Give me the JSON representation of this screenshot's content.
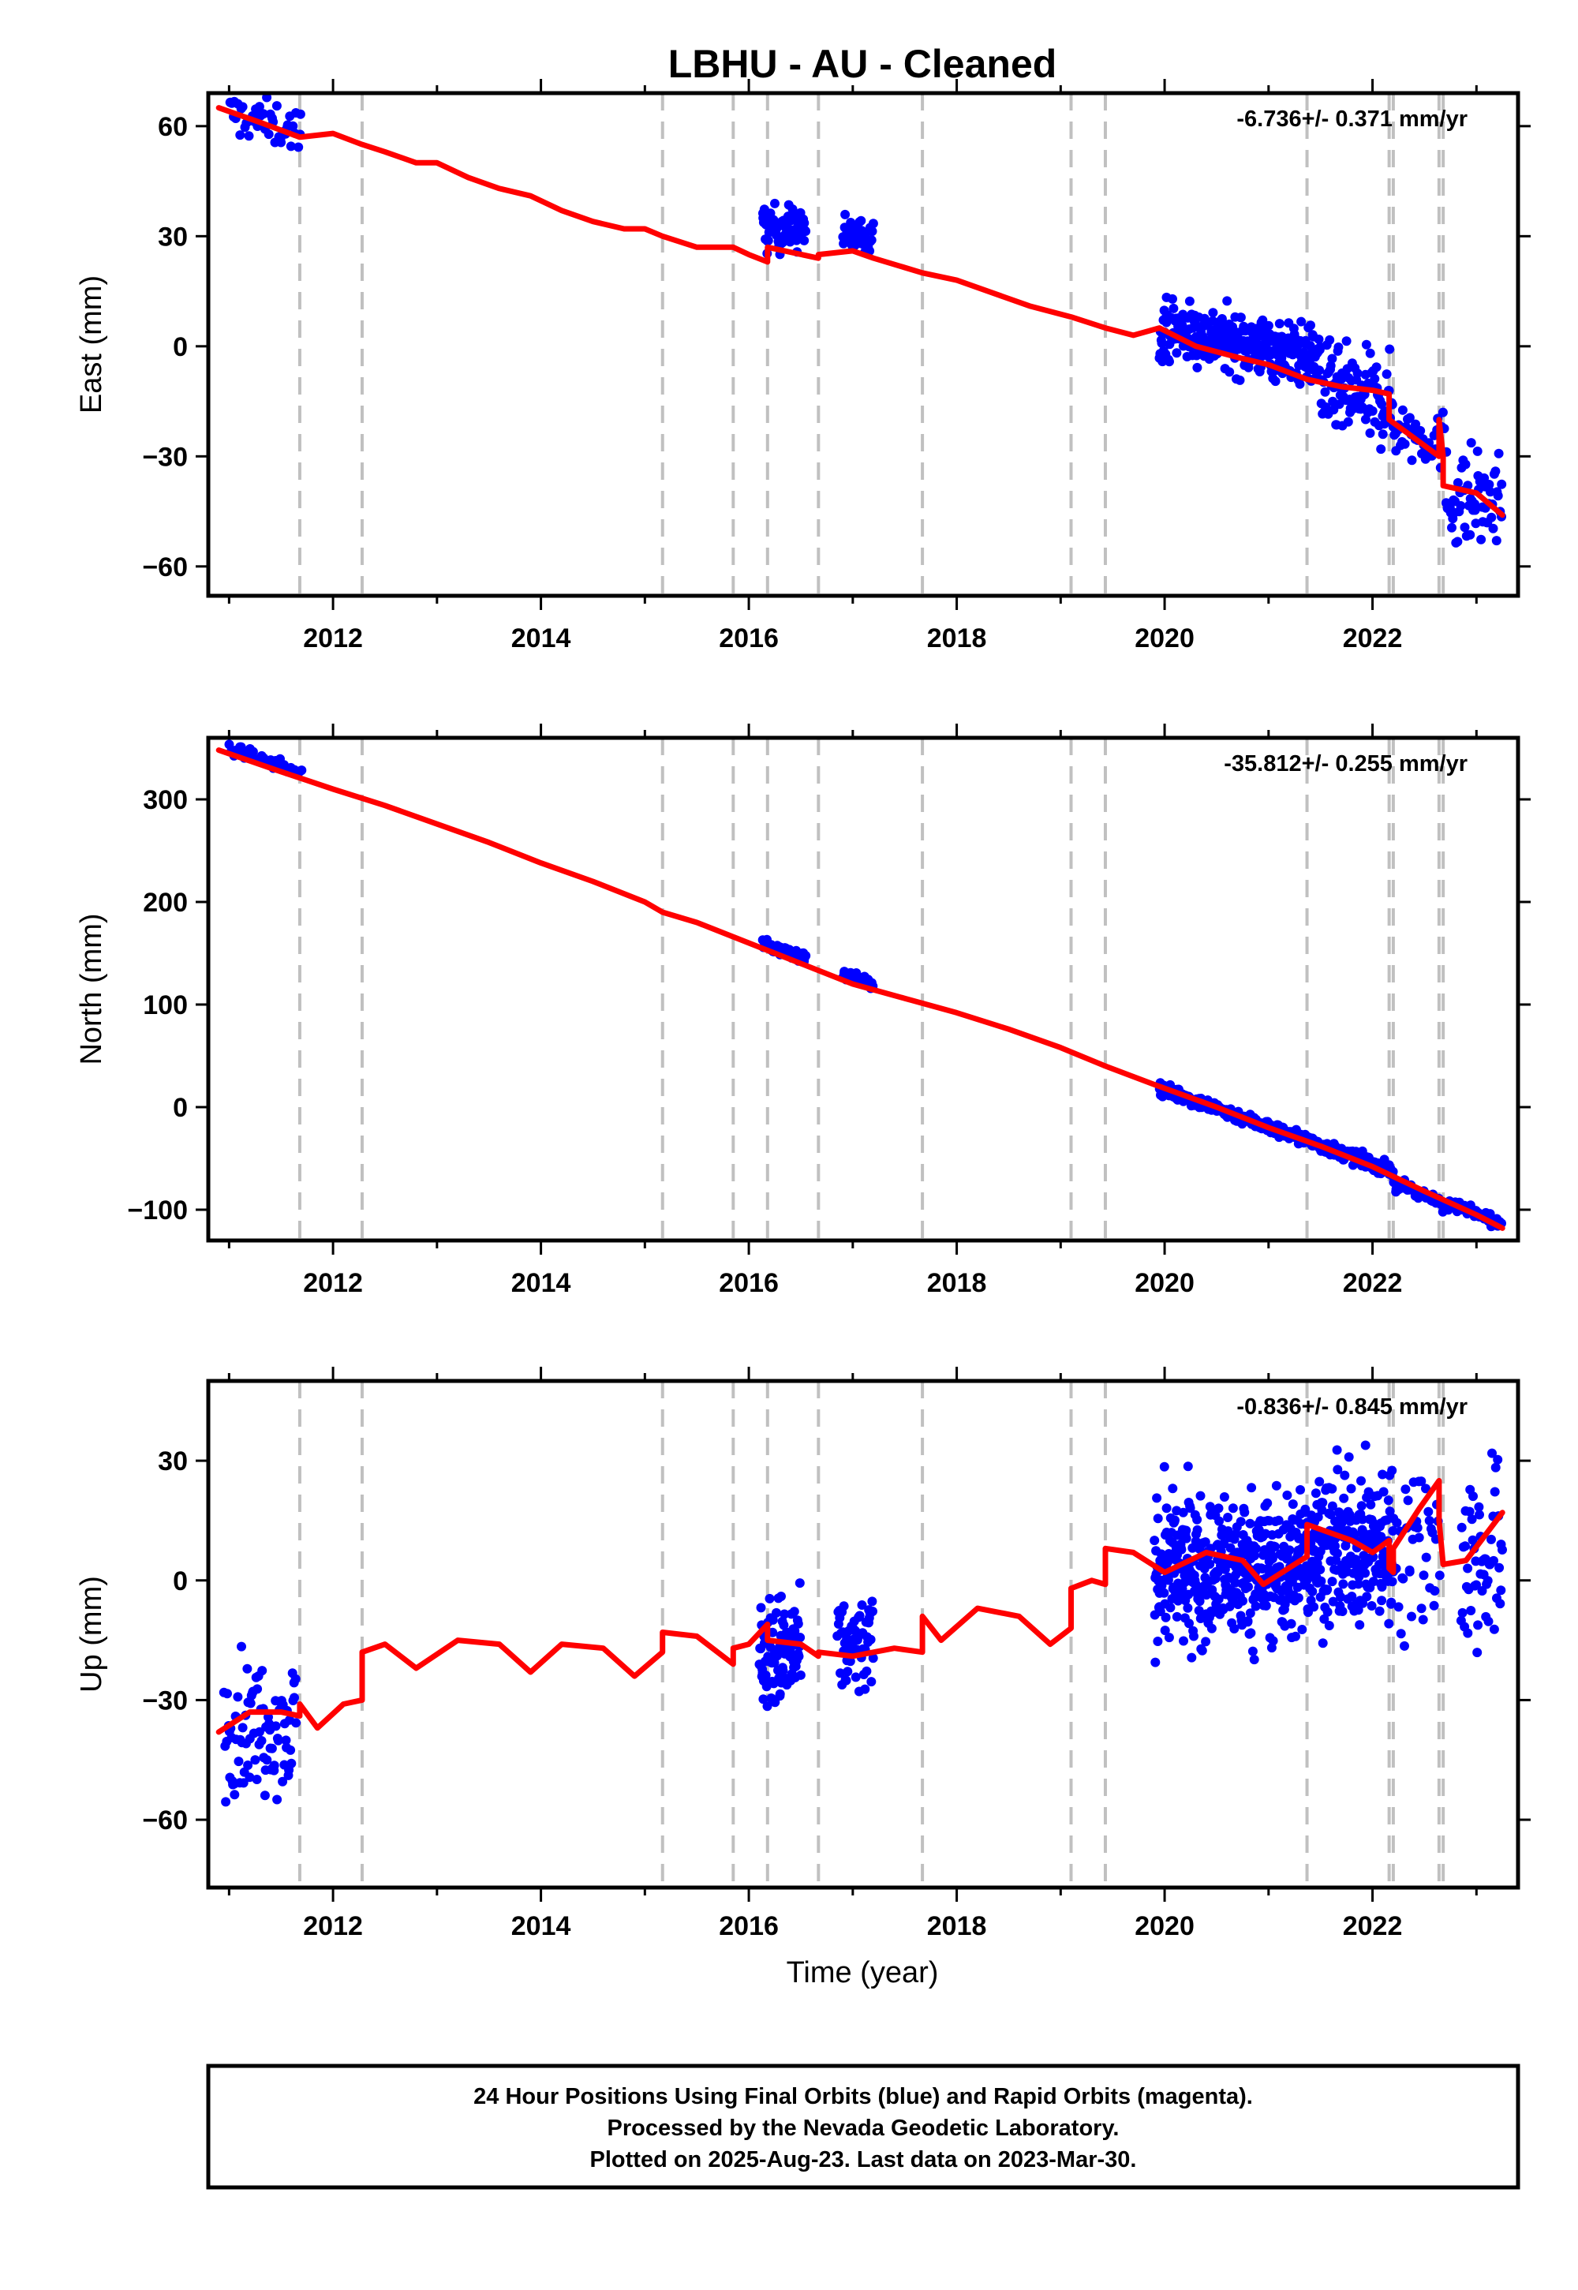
{
  "title": "LBHU  - AU - Cleaned",
  "xlabel": "Time (year)",
  "x_ticks": [
    "2012",
    "2014",
    "2016",
    "2018",
    "2020",
    "2022"
  ],
  "footer": {
    "line1": "24 Hour Positions Using Final Orbits (blue) and Rapid Orbits (magenta).",
    "line2": "Processed by the Nevada Geodetic Laboratory.",
    "line3": "Plotted on 2025-Aug-23. Last data on 2023-Mar-30."
  },
  "colors": {
    "data": "#0000ff",
    "model": "#ff0000",
    "event_lines": "#c0c0c0",
    "frame": "#000000"
  },
  "chart_data": [
    {
      "type": "scatter",
      "panel": "east",
      "ylabel": "East (mm)",
      "rate_text": "-6.736+/- 0.371 mm/yr",
      "xlim": [
        2010.8,
        2023.4
      ],
      "ylim": [
        -68,
        69
      ],
      "y_ticks": [
        -60,
        -30,
        0,
        30,
        60
      ],
      "y_tick_labels": [
        "−60",
        "−30",
        "0",
        "30",
        "60"
      ],
      "event_lines": [
        2011.68,
        2012.28,
        2015.17,
        2015.85,
        2016.18,
        2016.67,
        2017.67,
        2019.1,
        2019.43,
        2021.37,
        2022.16,
        2022.2,
        2022.64,
        2022.68
      ],
      "clusters": [
        {
          "x": [
            2011.0,
            2011.7
          ],
          "center": 61,
          "slope": -6.7,
          "spread": 3,
          "n": 45
        },
        {
          "x": [
            2016.13,
            2016.55
          ],
          "center": 32,
          "slope": 0,
          "spread": 3,
          "n": 70
        },
        {
          "x": [
            2016.9,
            2017.2
          ],
          "center": 30,
          "slope": 0,
          "spread": 2.5,
          "n": 40
        },
        {
          "x": [
            2019.95,
            2021.5
          ],
          "center": 1,
          "slope": -5.5,
          "spread": 4,
          "n": 320
        },
        {
          "x": [
            2021.5,
            2022.2
          ],
          "center": -14,
          "slope": -6,
          "spread": 6,
          "n": 110
        },
        {
          "x": [
            2022.2,
            2022.7
          ],
          "center": -24,
          "slope": -8,
          "spread": 4,
          "n": 40
        },
        {
          "x": [
            2022.7,
            2023.25
          ],
          "center": -42,
          "slope": -6,
          "spread": 7,
          "n": 60
        }
      ],
      "model": {
        "x": [
          2010.9,
          2011.3,
          2011.68,
          2012.0,
          2012.28,
          2012.5,
          2012.8,
          2013.0,
          2013.3,
          2013.6,
          2013.9,
          2014.2,
          2014.5,
          2014.8,
          2015.0,
          2015.17,
          2015.5,
          2015.85,
          2016.0,
          2016.18,
          2016.18,
          2016.67,
          2016.67,
          2017.0,
          2017.2,
          2017.67,
          2018.0,
          2018.3,
          2018.7,
          2019.1,
          2019.43,
          2019.7,
          2019.95,
          2020.3,
          2020.7,
          2021.0,
          2021.37,
          2021.7,
          2022.0,
          2022.16,
          2022.16,
          2022.4,
          2022.64,
          2022.64,
          2022.68,
          2022.68,
          2023.0,
          2023.25
        ],
        "y": [
          65,
          61,
          57,
          58,
          55,
          53,
          50,
          50,
          46,
          43,
          41,
          37,
          34,
          32,
          32,
          30,
          27,
          27,
          25,
          23,
          27,
          24,
          25,
          26,
          24,
          20,
          18,
          15,
          11,
          8,
          5,
          3,
          5,
          0,
          -3,
          -5,
          -9,
          -11,
          -12,
          -13,
          -20,
          -25,
          -30,
          -20,
          -30,
          -38,
          -40,
          -46
        ]
      }
    },
    {
      "type": "scatter",
      "panel": "north",
      "ylabel": "North (mm)",
      "rate_text": "-35.812+/- 0.255 mm/yr",
      "xlim": [
        2010.8,
        2023.4
      ],
      "ylim": [
        -130,
        360
      ],
      "y_ticks": [
        -100,
        0,
        100,
        200,
        300
      ],
      "y_tick_labels": [
        "−100",
        "0",
        "100",
        "200",
        "300"
      ],
      "event_lines": [
        2011.68,
        2012.28,
        2015.17,
        2015.85,
        2016.18,
        2016.67,
        2017.67,
        2019.1,
        2019.43,
        2021.37,
        2022.16,
        2022.2,
        2022.64,
        2022.68
      ],
      "clusters": [
        {
          "x": [
            2011.0,
            2011.7
          ],
          "center": 338,
          "slope": -34,
          "spread": 2.5,
          "n": 40
        },
        {
          "x": [
            2016.13,
            2016.55
          ],
          "center": 152,
          "slope": -34,
          "spread": 2.5,
          "n": 60
        },
        {
          "x": [
            2016.9,
            2017.2
          ],
          "center": 125,
          "slope": -34,
          "spread": 2.5,
          "n": 35
        },
        {
          "x": [
            2019.95,
            2022.2
          ],
          "center": -22,
          "slope": -36,
          "spread": 3,
          "n": 400
        },
        {
          "x": [
            2022.2,
            2023.25
          ],
          "center": -95,
          "slope": -36,
          "spread": 3.5,
          "n": 80
        }
      ],
      "model": {
        "x": [
          2010.9,
          2011.5,
          2012.0,
          2012.5,
          2013.0,
          2013.5,
          2014.0,
          2014.5,
          2015.0,
          2015.17,
          2015.5,
          2016.0,
          2016.5,
          2017.0,
          2017.5,
          2018.0,
          2018.5,
          2019.0,
          2019.43,
          2019.9,
          2020.5,
          2021.0,
          2021.5,
          2022.0,
          2022.5,
          2023.0,
          2023.25
        ],
        "y": [
          348,
          327,
          310,
          294,
          276,
          258,
          238,
          220,
          200,
          190,
          180,
          160,
          140,
          120,
          106,
          92,
          76,
          58,
          40,
          22,
          0,
          -20,
          -38,
          -58,
          -82,
          -105,
          -118
        ]
      }
    },
    {
      "type": "scatter",
      "panel": "up",
      "ylabel": "Up (mm)",
      "rate_text": "-0.836+/- 0.845 mm/yr",
      "xlim": [
        2010.8,
        2023.4
      ],
      "ylim": [
        -77,
        50
      ],
      "y_ticks": [
        -60,
        -30,
        0,
        30
      ],
      "y_tick_labels": [
        "−60",
        "−30",
        "0",
        "30"
      ],
      "event_lines": [
        2011.68,
        2012.28,
        2015.17,
        2015.85,
        2016.18,
        2016.67,
        2017.67,
        2019.1,
        2019.43,
        2021.37,
        2022.16,
        2022.2,
        2022.64,
        2022.68
      ],
      "clusters": [
        {
          "x": [
            2010.95,
            2011.65
          ],
          "center": -36,
          "slope": 0,
          "spread": 8,
          "n": 90
        },
        {
          "x": [
            2016.1,
            2016.5
          ],
          "center": -18,
          "slope": 0,
          "spread": 7,
          "n": 100
        },
        {
          "x": [
            2016.85,
            2017.2
          ],
          "center": -17,
          "slope": 0,
          "spread": 6,
          "n": 60
        },
        {
          "x": [
            2019.9,
            2021.3
          ],
          "center": 3,
          "slope": 0,
          "spread": 9,
          "n": 420
        },
        {
          "x": [
            2021.3,
            2022.2
          ],
          "center": 8,
          "slope": 0,
          "spread": 9,
          "n": 260
        },
        {
          "x": [
            2022.2,
            2022.65
          ],
          "center": 10,
          "slope": 0,
          "spread": 12,
          "n": 40
        },
        {
          "x": [
            2022.85,
            2023.25
          ],
          "center": 5,
          "slope": 0,
          "spread": 12,
          "n": 55
        }
      ],
      "model": {
        "x": [
          2010.9,
          2011.2,
          2011.5,
          2011.68,
          2011.68,
          2011.85,
          2012.1,
          2012.28,
          2012.28,
          2012.5,
          2012.8,
          2013.2,
          2013.6,
          2013.9,
          2014.2,
          2014.6,
          2014.9,
          2015.17,
          2015.17,
          2015.5,
          2015.85,
          2015.85,
          2016.0,
          2016.18,
          2016.18,
          2016.5,
          2016.67,
          2016.67,
          2017.0,
          2017.4,
          2017.67,
          2017.67,
          2017.85,
          2018.2,
          2018.6,
          2018.9,
          2019.1,
          2019.1,
          2019.3,
          2019.43,
          2019.43,
          2019.7,
          2020.0,
          2020.4,
          2020.75,
          2020.95,
          2021.37,
          2021.37,
          2021.8,
          2022.0,
          2022.16,
          2022.16,
          2022.2,
          2022.2,
          2022.45,
          2022.64,
          2022.64,
          2022.68,
          2022.68,
          2022.9,
          2023.25
        ],
        "y": [
          -38,
          -33,
          -33,
          -34,
          -31,
          -37,
          -31,
          -30,
          -18,
          -16,
          -22,
          -15,
          -16,
          -23,
          -16,
          -17,
          -24,
          -18,
          -13,
          -14,
          -21,
          -17,
          -16,
          -11,
          -15,
          -16,
          -19,
          -18,
          -19,
          -17,
          -18,
          -9,
          -15,
          -7,
          -9,
          -16,
          -12,
          -2,
          0,
          -1,
          8,
          7,
          2,
          7,
          5,
          -1,
          6,
          14,
          10,
          7,
          10,
          3,
          2,
          8,
          18,
          25,
          15,
          4,
          4,
          5,
          17
        ]
      }
    }
  ]
}
